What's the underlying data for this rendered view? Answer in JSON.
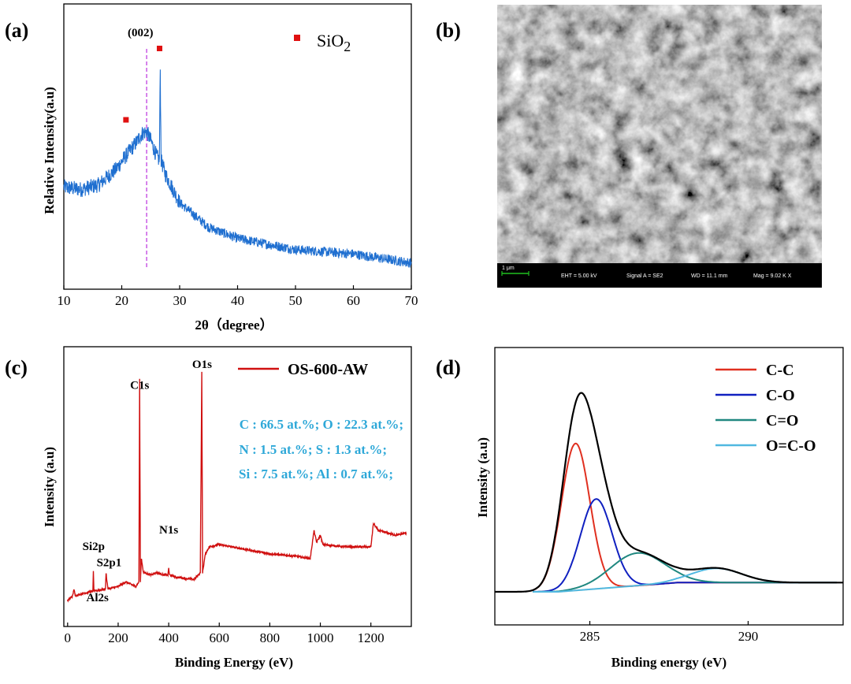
{
  "panels": {
    "a": "(a)",
    "b": "(b)",
    "c": "(c)",
    "d": "(d)"
  },
  "colors": {
    "xrd_line": "#1f6fd0",
    "marker": "#e01010",
    "ref_line": "#c040e0",
    "survey_line": "#d01010",
    "annotation": "#2ea8d8",
    "cc": "#e03020",
    "co": "#1020c0",
    "c_eq_o": "#208880",
    "o_c_o": "#50b8e0",
    "envelope": "#000000",
    "baseline": "#f0a020"
  },
  "chart_data": [
    {
      "id": "a",
      "type": "line",
      "xlabel": "2θ（degree）",
      "ylabel": "Relative Intensity(a.u)",
      "xlim": [
        10,
        70
      ],
      "xticks": [
        10,
        20,
        30,
        40,
        50,
        60,
        70
      ],
      "ylim": [
        0,
        1
      ],
      "annotations": {
        "peak_label": "(002)",
        "peak_position": 24.3,
        "legend_marker": "■",
        "legend_text": "SiO",
        "legend_sub": "2"
      },
      "sio2_markers": [
        {
          "x": 20.8,
          "y": 0.68
        },
        {
          "x": 26.6,
          "y": 1.0
        }
      ],
      "series": [
        {
          "points": [
            [
              10,
              0.38
            ],
            [
              13,
              0.37
            ],
            [
              16,
              0.39
            ],
            [
              19,
              0.46
            ],
            [
              21,
              0.53
            ],
            [
              22.5,
              0.58
            ],
            [
              23.5,
              0.62
            ],
            [
              24.3,
              0.63
            ],
            [
              25,
              0.59
            ],
            [
              26,
              0.52
            ],
            [
              26.5,
              0.5
            ],
            [
              26.65,
              0.91
            ],
            [
              26.8,
              0.5
            ],
            [
              27.5,
              0.44
            ],
            [
              30,
              0.31
            ],
            [
              35,
              0.2
            ],
            [
              40,
              0.15
            ],
            [
              50,
              0.1
            ],
            [
              60,
              0.08
            ],
            [
              70,
              0.04
            ]
          ]
        }
      ]
    },
    {
      "id": "b",
      "type": "image",
      "sem_info": {
        "scale": "1 μm",
        "eht": "EHT =  5.00 kV",
        "signal": "Signal A = SE2",
        "wd": "WD = 11.1 mm",
        "mag": "Mag =  9.02 K X"
      }
    },
    {
      "id": "c",
      "type": "line",
      "xlabel": "Binding Energy (eV)",
      "ylabel": "Intensity (a.u)",
      "xlim": [
        -15,
        1360
      ],
      "xticks": [
        0,
        200,
        400,
        600,
        800,
        1000,
        1200
      ],
      "ylim": [
        0,
        1
      ],
      "legend": "OS-600-AW",
      "composition": [
        "C : 66.5 at.%; O : 22.3 at.%;",
        "N : 1.5 at.%; S : 1.3 at.%;",
        "Si : 7.5 at.%; Al : 0.7 at.%;"
      ],
      "peak_labels": [
        {
          "text": "C1s",
          "x": 285,
          "y": 0.9
        },
        {
          "text": "O1s",
          "x": 532,
          "y": 0.99
        },
        {
          "text": "N1s",
          "x": 400,
          "y": 0.28
        },
        {
          "text": "Si2p",
          "x": 103,
          "y": 0.21
        },
        {
          "text": "S2p1",
          "x": 164,
          "y": 0.14
        },
        {
          "text": "Al2s",
          "x": 118,
          "y": -0.01
        }
      ],
      "series": [
        {
          "name": "OS-600-AW",
          "points": [
            [
              0,
              0.02
            ],
            [
              20,
              0.04
            ],
            [
              25,
              0.07
            ],
            [
              30,
              0.04
            ],
            [
              60,
              0.05
            ],
            [
              100,
              0.06
            ],
            [
              102,
              0.15
            ],
            [
              104,
              0.06
            ],
            [
              150,
              0.07
            ],
            [
              152,
              0.14
            ],
            [
              156,
              0.1
            ],
            [
              160,
              0.07
            ],
            [
              200,
              0.08
            ],
            [
              230,
              0.1
            ],
            [
              270,
              0.08
            ],
            [
              282,
              0.1
            ],
            [
              285,
              0.97
            ],
            [
              288,
              0.1
            ],
            [
              292,
              0.2
            ],
            [
              300,
              0.14
            ],
            [
              330,
              0.13
            ],
            [
              350,
              0.14
            ],
            [
              380,
              0.13
            ],
            [
              397,
              0.13
            ],
            [
              400,
              0.16
            ],
            [
              403,
              0.13
            ],
            [
              430,
              0.12
            ],
            [
              500,
              0.11
            ],
            [
              525,
              0.14
            ],
            [
              531,
              1.0
            ],
            [
              534,
              0.14
            ],
            [
              545,
              0.22
            ],
            [
              560,
              0.25
            ],
            [
              600,
              0.26
            ],
            [
              700,
              0.24
            ],
            [
              800,
              0.22
            ],
            [
              900,
              0.21
            ],
            [
              960,
              0.2
            ],
            [
              975,
              0.32
            ],
            [
              985,
              0.27
            ],
            [
              1000,
              0.3
            ],
            [
              1010,
              0.26
            ],
            [
              1100,
              0.25
            ],
            [
              1200,
              0.25
            ],
            [
              1210,
              0.35
            ],
            [
              1230,
              0.32
            ],
            [
              1300,
              0.3
            ],
            [
              1340,
              0.31
            ]
          ]
        }
      ]
    },
    {
      "id": "d",
      "type": "line",
      "xlabel": "Binding energy (eV)",
      "ylabel": "Intensity (a.u)",
      "xlim": [
        282,
        293
      ],
      "xticks": [
        285,
        290
      ],
      "ylim": [
        0,
        1
      ],
      "series": [
        {
          "name": "C-C",
          "center": 284.55,
          "amp": 0.72,
          "sigma": 0.45
        },
        {
          "name": "C-O",
          "center": 285.2,
          "amp": 0.44,
          "sigma": 0.5
        },
        {
          "name": "C=O",
          "center": 286.5,
          "amp": 0.16,
          "sigma": 0.85
        },
        {
          "name": "O=C-O",
          "center": 289.0,
          "amp": 0.07,
          "sigma": 0.8
        }
      ]
    }
  ]
}
